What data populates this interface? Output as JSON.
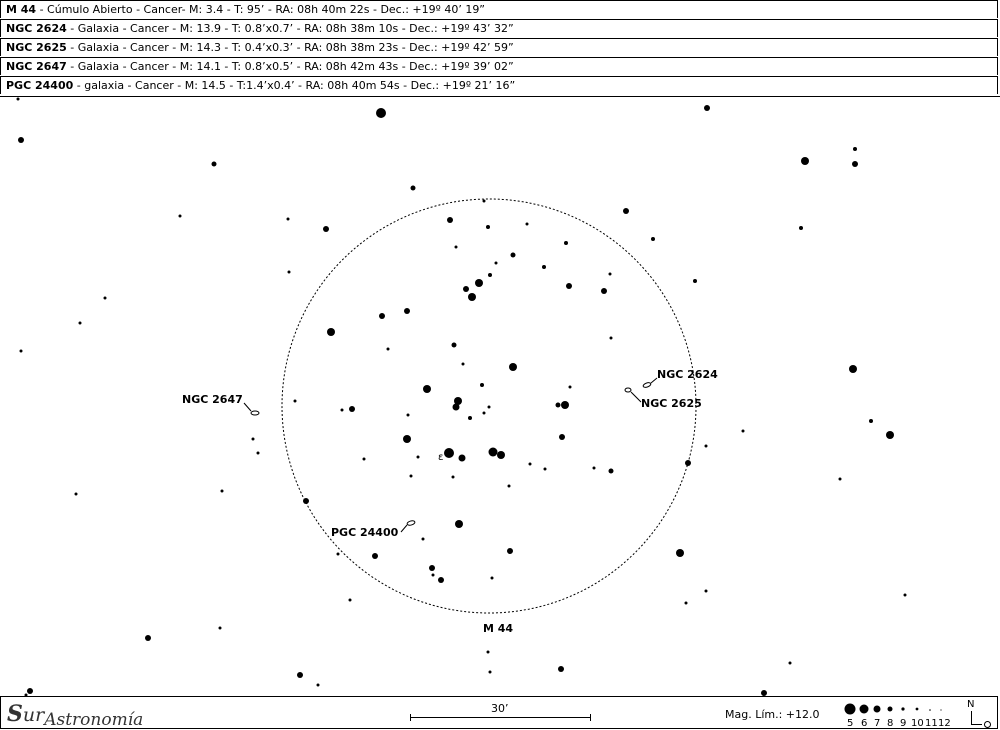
{
  "objects": [
    {
      "id": "M 44",
      "desc": " - Cúmulo Abierto - Cancer- M: 3.4 - T: 95’ - RA: 08h 40m 22s - Dec.: +19º 40’ 19”"
    },
    {
      "id": "NGC 2624",
      "desc": " - Galaxia - Cancer - M: 13.9 - T: 0.8’x0.7’ - RA: 08h 38m 10s - Dec.: +19º 43’ 32”"
    },
    {
      "id": "NGC 2625",
      "desc": " - Galaxia - Cancer - M: 14.3 - T: 0.4’x0.3’ - RA: 08h 38m 23s - Dec.: +19º 42’ 59”"
    },
    {
      "id": "NGC 2647",
      "desc": " - Galaxia - Cancer - M: 14.1 - T: 0.8’x0.5’ - RA: 08h 42m 43s - Dec.: +19º 39’ 02”"
    },
    {
      "id": "PGC 24400",
      "desc": " - galaxia - Cancer - M: 14.5 - T:1.4’x0.4’ - RA: 08h 40m 54s - Dec.: +19º 21’ 16”"
    }
  ],
  "map_labels": {
    "m44": "M 44",
    "ngc2624": "NGC 2624",
    "ngc2625": "NGC 2625",
    "ngc2647": "NGC 2647",
    "pgc24400": "PGC 24400",
    "epsilon": "ε"
  },
  "footer": {
    "logo_s": "S",
    "logo_ur": "ur",
    "logo_astro": "Astronomía",
    "scale": "30’",
    "mag_limit": "Mag. Lím.: +12.0",
    "mag_legend": [
      "5",
      "6",
      "7",
      "8",
      "9",
      "10",
      "11",
      "12"
    ],
    "north": "N"
  }
}
